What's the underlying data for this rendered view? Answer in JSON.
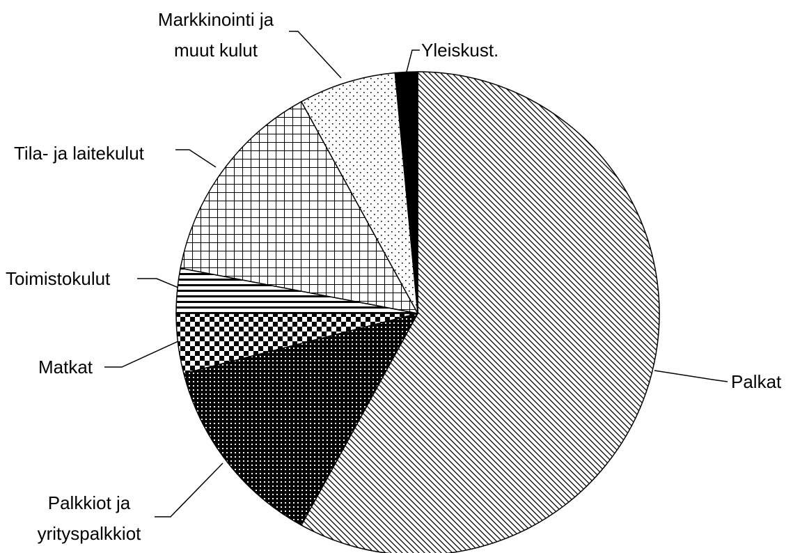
{
  "chart_data": {
    "type": "pie",
    "categories": [
      "Palkat",
      "Palkkiot ja yrityspalkkiot",
      "Matkat",
      "Toimistokulut",
      "Tila- ja laitekulut",
      "Markkinointi ja muut kulut",
      "Yleiskust."
    ],
    "values": [
      58,
      13,
      4,
      3,
      14,
      6.5,
      1.5
    ],
    "patterns": [
      "diagonal",
      "dark-dots",
      "checker",
      "horizontal",
      "grid",
      "dots",
      "solid"
    ]
  }
}
